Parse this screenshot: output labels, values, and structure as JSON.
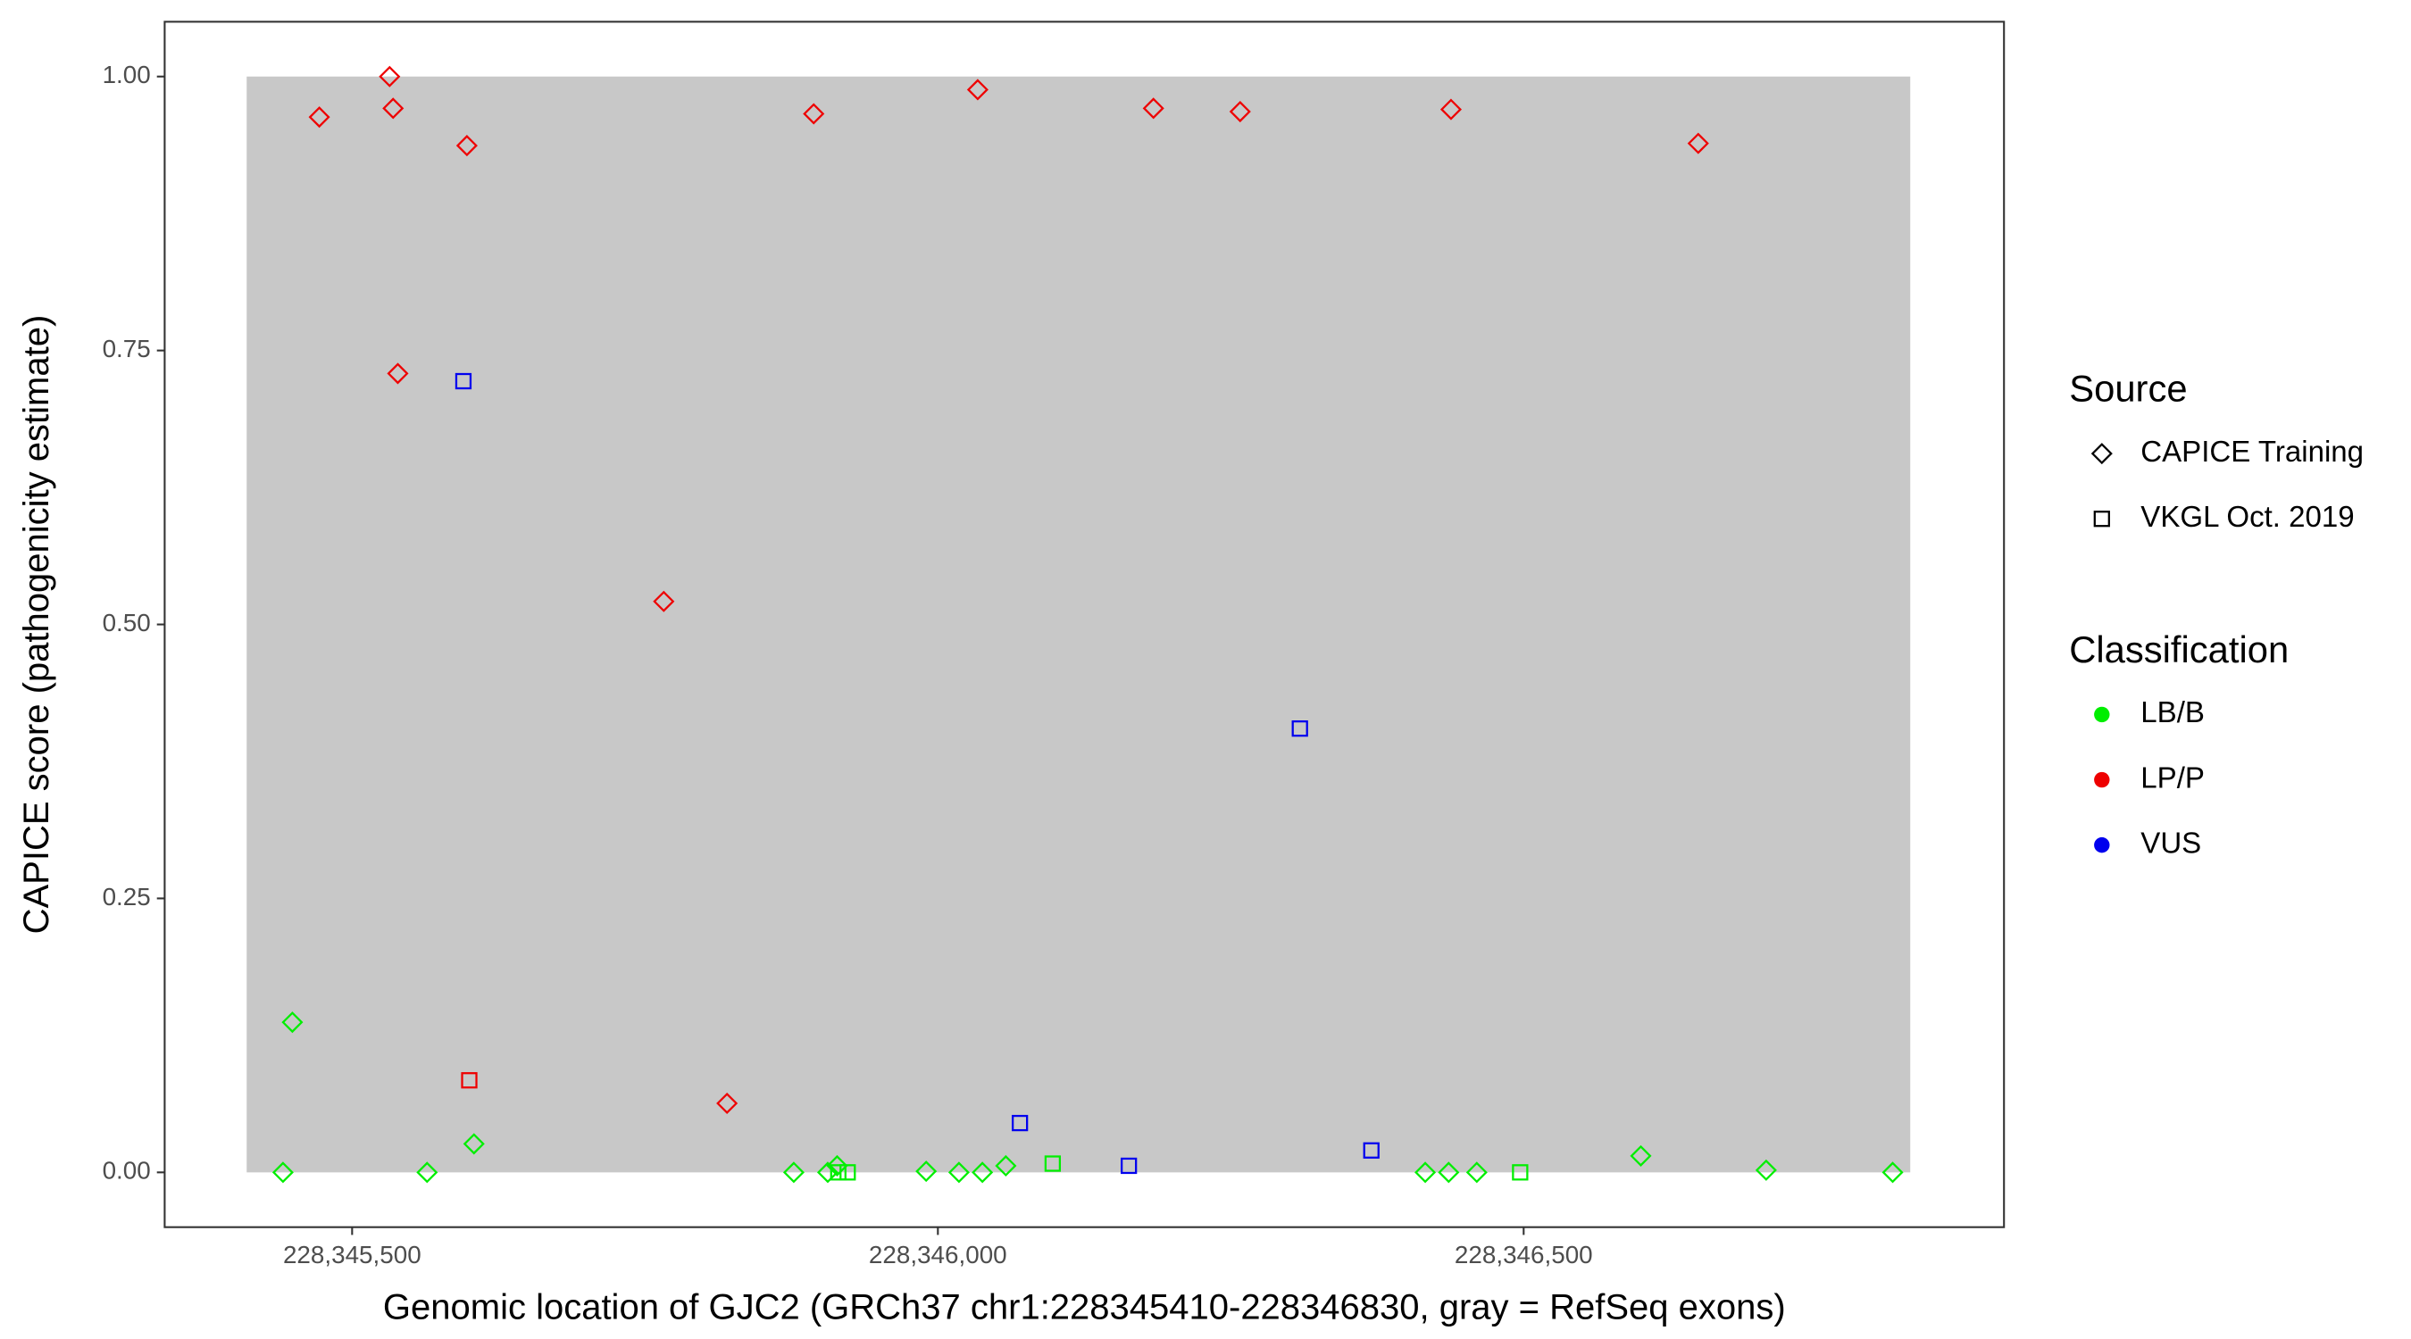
{
  "chart_data": {
    "type": "scatter",
    "x_label": "Genomic location of GJC2 (GRCh37 chr1:228345410-228346830, gray = RefSeq exons)",
    "y_label": "CAPICE score (pathogenicity estimate)",
    "xlim": [
      228345340,
      228346910
    ],
    "ylim": [
      -0.05,
      1.05
    ],
    "xticks": [
      {
        "value": 228345500,
        "label": "228,345,500"
      },
      {
        "value": 228346000,
        "label": "228,346,000"
      },
      {
        "value": 228346500,
        "label": "228,346,500"
      }
    ],
    "yticks": [
      {
        "value": 0,
        "label": "0.00"
      },
      {
        "value": 0.25,
        "label": "0.25"
      },
      {
        "value": 0.5,
        "label": "0.50"
      },
      {
        "value": 0.75,
        "label": "0.75"
      },
      {
        "value": 1,
        "label": "1.00"
      }
    ],
    "shaded_region": {
      "x": [
        228345410,
        228346830
      ],
      "y": [
        0,
        1
      ],
      "color": "#c8c8c8"
    },
    "source_legend": {
      "title": "Source",
      "items": [
        {
          "label": "CAPICE Training",
          "shape": "diamond"
        },
        {
          "label": "VKGL Oct. 2019",
          "shape": "square"
        }
      ]
    },
    "classification_legend": {
      "title": "Classification",
      "items": [
        {
          "label": "LB/B",
          "color": "#00ee00"
        },
        {
          "label": "LP/P",
          "color": "#ee0000"
        },
        {
          "label": "VUS",
          "color": "#0000ee"
        }
      ]
    },
    "groups": [
      {
        "source": "CAPICE Training",
        "classification": "LP/P",
        "x": [
          228345472,
          228345532,
          228345535,
          228345598,
          228345539,
          228345766,
          228345820,
          228345894,
          228346034,
          228346184,
          228346258,
          228346438,
          228346649
        ],
        "y": [
          0.963,
          1.0,
          0.971,
          0.937,
          0.729,
          0.521,
          0.063,
          0.966,
          0.988,
          0.971,
          0.968,
          0.97,
          0.939
        ]
      },
      {
        "source": "VKGL Oct. 2019",
        "classification": "LP/P",
        "x": [
          228345600
        ],
        "y": [
          0.084
        ]
      },
      {
        "source": "VKGL Oct. 2019",
        "classification": "VUS",
        "x": [
          228345595,
          228346070,
          228346163,
          228346309,
          228346370
        ],
        "y": [
          0.722,
          0.045,
          0.006,
          0.405,
          0.02
        ]
      },
      {
        "source": "CAPICE Training",
        "classification": "LB/B",
        "x": [
          228345449,
          228345441,
          228345564,
          228345604,
          228345877,
          228345906,
          228345914,
          228345990,
          228346018,
          228346038,
          228346058,
          228346416,
          228346436,
          228346460,
          228346600,
          228346707,
          228346815
        ],
        "y": [
          0.137,
          0,
          0,
          0.026,
          0,
          0,
          0.006,
          0.001,
          0,
          0,
          0.006,
          0,
          0,
          0,
          0.015,
          0.002,
          0
        ]
      },
      {
        "source": "VKGL Oct. 2019",
        "classification": "LB/B",
        "x": [
          228345915,
          228345923,
          228346098,
          228346497
        ],
        "y": [
          0,
          0,
          0.008,
          0
        ]
      }
    ]
  }
}
